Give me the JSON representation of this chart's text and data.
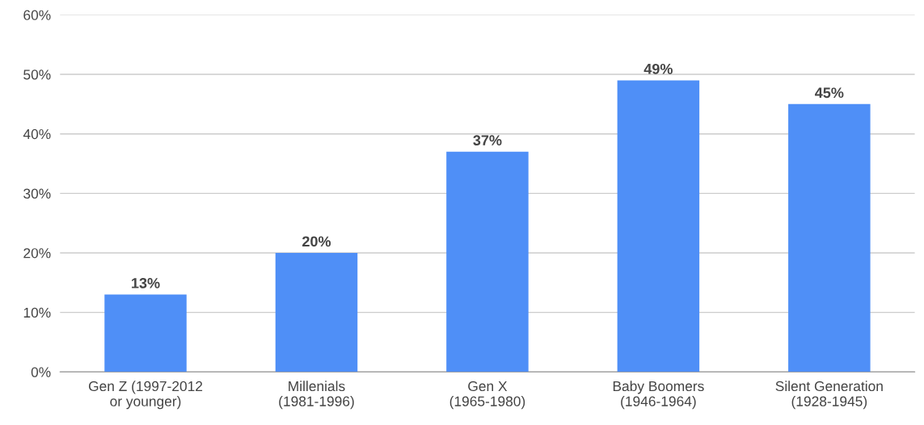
{
  "chart_data": {
    "type": "bar",
    "categories": [
      "Gen Z (1997-2012\nor younger)",
      "Millenials\n(1981-1996)",
      "Gen X\n(1965-1980)",
      "Baby Boomers\n(1946-1964)",
      "Silent Generation\n(1928-1945)"
    ],
    "values": [
      13,
      20,
      37,
      49,
      45
    ],
    "value_labels": [
      "13%",
      "20%",
      "37%",
      "49%",
      "45%"
    ],
    "color": "#4f8ff7",
    "ylim": [
      0,
      60
    ],
    "yticks": [
      {
        "value": 0,
        "label": "0%"
      },
      {
        "value": 10,
        "label": "10%"
      },
      {
        "value": 20,
        "label": "20%"
      },
      {
        "value": 30,
        "label": "30%"
      },
      {
        "value": 40,
        "label": "40%"
      },
      {
        "value": 50,
        "label": "50%"
      },
      {
        "value": 60,
        "label": "60%"
      }
    ],
    "grid": "y"
  }
}
